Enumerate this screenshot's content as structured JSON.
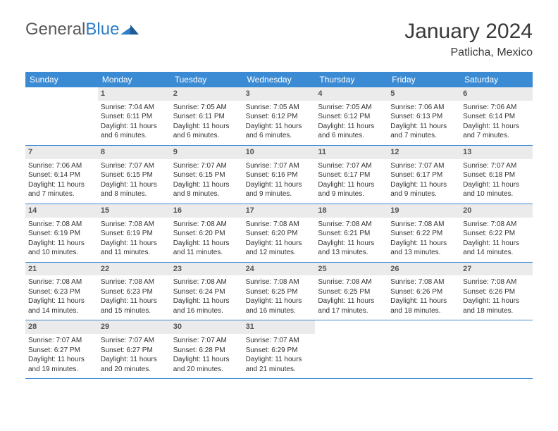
{
  "brand": {
    "part1": "General",
    "part2": "Blue"
  },
  "title": "January 2024",
  "location": "Patlicha, Mexico",
  "colors": {
    "header_bg": "#3b8bd4",
    "header_text": "#ffffff",
    "daynum_bg": "#ebebeb",
    "divider": "#3b8bd4",
    "body_text": "#333333",
    "logo_gray": "#5a5a5a",
    "logo_blue": "#2d7dc7"
  },
  "daysOfWeek": [
    "Sunday",
    "Monday",
    "Tuesday",
    "Wednesday",
    "Thursday",
    "Friday",
    "Saturday"
  ],
  "weeks": [
    [
      null,
      {
        "n": "1",
        "sr": "7:04 AM",
        "ss": "6:11 PM",
        "dl": "11 hours and 6 minutes."
      },
      {
        "n": "2",
        "sr": "7:05 AM",
        "ss": "6:11 PM",
        "dl": "11 hours and 6 minutes."
      },
      {
        "n": "3",
        "sr": "7:05 AM",
        "ss": "6:12 PM",
        "dl": "11 hours and 6 minutes."
      },
      {
        "n": "4",
        "sr": "7:05 AM",
        "ss": "6:12 PM",
        "dl": "11 hours and 6 minutes."
      },
      {
        "n": "5",
        "sr": "7:06 AM",
        "ss": "6:13 PM",
        "dl": "11 hours and 7 minutes."
      },
      {
        "n": "6",
        "sr": "7:06 AM",
        "ss": "6:14 PM",
        "dl": "11 hours and 7 minutes."
      }
    ],
    [
      {
        "n": "7",
        "sr": "7:06 AM",
        "ss": "6:14 PM",
        "dl": "11 hours and 7 minutes."
      },
      {
        "n": "8",
        "sr": "7:07 AM",
        "ss": "6:15 PM",
        "dl": "11 hours and 8 minutes."
      },
      {
        "n": "9",
        "sr": "7:07 AM",
        "ss": "6:15 PM",
        "dl": "11 hours and 8 minutes."
      },
      {
        "n": "10",
        "sr": "7:07 AM",
        "ss": "6:16 PM",
        "dl": "11 hours and 9 minutes."
      },
      {
        "n": "11",
        "sr": "7:07 AM",
        "ss": "6:17 PM",
        "dl": "11 hours and 9 minutes."
      },
      {
        "n": "12",
        "sr": "7:07 AM",
        "ss": "6:17 PM",
        "dl": "11 hours and 9 minutes."
      },
      {
        "n": "13",
        "sr": "7:07 AM",
        "ss": "6:18 PM",
        "dl": "11 hours and 10 minutes."
      }
    ],
    [
      {
        "n": "14",
        "sr": "7:08 AM",
        "ss": "6:19 PM",
        "dl": "11 hours and 10 minutes."
      },
      {
        "n": "15",
        "sr": "7:08 AM",
        "ss": "6:19 PM",
        "dl": "11 hours and 11 minutes."
      },
      {
        "n": "16",
        "sr": "7:08 AM",
        "ss": "6:20 PM",
        "dl": "11 hours and 11 minutes."
      },
      {
        "n": "17",
        "sr": "7:08 AM",
        "ss": "6:20 PM",
        "dl": "11 hours and 12 minutes."
      },
      {
        "n": "18",
        "sr": "7:08 AM",
        "ss": "6:21 PM",
        "dl": "11 hours and 13 minutes."
      },
      {
        "n": "19",
        "sr": "7:08 AM",
        "ss": "6:22 PM",
        "dl": "11 hours and 13 minutes."
      },
      {
        "n": "20",
        "sr": "7:08 AM",
        "ss": "6:22 PM",
        "dl": "11 hours and 14 minutes."
      }
    ],
    [
      {
        "n": "21",
        "sr": "7:08 AM",
        "ss": "6:23 PM",
        "dl": "11 hours and 14 minutes."
      },
      {
        "n": "22",
        "sr": "7:08 AM",
        "ss": "6:23 PM",
        "dl": "11 hours and 15 minutes."
      },
      {
        "n": "23",
        "sr": "7:08 AM",
        "ss": "6:24 PM",
        "dl": "11 hours and 16 minutes."
      },
      {
        "n": "24",
        "sr": "7:08 AM",
        "ss": "6:25 PM",
        "dl": "11 hours and 16 minutes."
      },
      {
        "n": "25",
        "sr": "7:08 AM",
        "ss": "6:25 PM",
        "dl": "11 hours and 17 minutes."
      },
      {
        "n": "26",
        "sr": "7:08 AM",
        "ss": "6:26 PM",
        "dl": "11 hours and 18 minutes."
      },
      {
        "n": "27",
        "sr": "7:08 AM",
        "ss": "6:26 PM",
        "dl": "11 hours and 18 minutes."
      }
    ],
    [
      {
        "n": "28",
        "sr": "7:07 AM",
        "ss": "6:27 PM",
        "dl": "11 hours and 19 minutes."
      },
      {
        "n": "29",
        "sr": "7:07 AM",
        "ss": "6:27 PM",
        "dl": "11 hours and 20 minutes."
      },
      {
        "n": "30",
        "sr": "7:07 AM",
        "ss": "6:28 PM",
        "dl": "11 hours and 20 minutes."
      },
      {
        "n": "31",
        "sr": "7:07 AM",
        "ss": "6:29 PM",
        "dl": "11 hours and 21 minutes."
      },
      null,
      null,
      null
    ]
  ],
  "labels": {
    "sunrise": "Sunrise: ",
    "sunset": "Sunset: ",
    "daylight": "Daylight: "
  }
}
